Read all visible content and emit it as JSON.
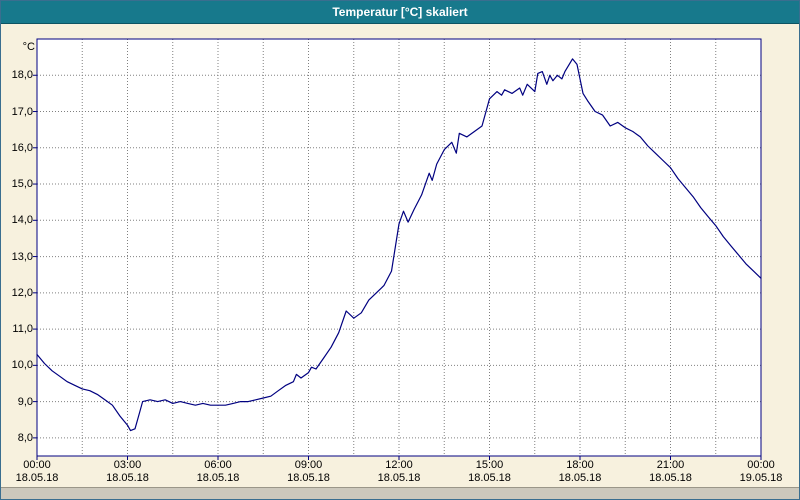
{
  "window": {
    "title": "Temperatur [°C] skaliert"
  },
  "colors": {
    "titlebar": "#17798c",
    "background": "#f7f1de",
    "plot_background": "#ffffff",
    "line": "#000080",
    "grid": "#808080",
    "plot_border": "#000080"
  },
  "chart_data": {
    "type": "line",
    "title": "Temperatur [°C] skaliert",
    "ylabel": "°C",
    "xlabel": "",
    "ylim": [
      7.5,
      19.0
    ],
    "xlim_hours": [
      0,
      24
    ],
    "grid": "dotted",
    "legend": "none",
    "yticks": [
      {
        "value": 8,
        "label": "8,0"
      },
      {
        "value": 9,
        "label": "9,0"
      },
      {
        "value": 10,
        "label": "10,0"
      },
      {
        "value": 11,
        "label": "11,0"
      },
      {
        "value": 12,
        "label": "12,0"
      },
      {
        "value": 13,
        "label": "13,0"
      },
      {
        "value": 14,
        "label": "14,0"
      },
      {
        "value": 15,
        "label": "15,0"
      },
      {
        "value": 16,
        "label": "16,0"
      },
      {
        "value": 17,
        "label": "17,0"
      },
      {
        "value": 18,
        "label": "18,0"
      }
    ],
    "xticks": [
      {
        "hour": 0,
        "time": "00:00",
        "date": "18.05.18"
      },
      {
        "hour": 3,
        "time": "03:00",
        "date": "18.05.18"
      },
      {
        "hour": 6,
        "time": "06:00",
        "date": "18.05.18"
      },
      {
        "hour": 9,
        "time": "09:00",
        "date": "18.05.18"
      },
      {
        "hour": 12,
        "time": "12:00",
        "date": "18.05.18"
      },
      {
        "hour": 15,
        "time": "15:00",
        "date": "18.05.18"
      },
      {
        "hour": 18,
        "time": "18:00",
        "date": "18.05.18"
      },
      {
        "hour": 21,
        "time": "21:00",
        "date": "18.05.18"
      },
      {
        "hour": 24,
        "time": "00:00",
        "date": "19.05.18"
      }
    ],
    "minor_vgrid_step_hours": 1.5,
    "series_name": "Temperatur",
    "points": [
      [
        0.0,
        10.3
      ],
      [
        0.25,
        10.05
      ],
      [
        0.5,
        9.85
      ],
      [
        0.75,
        9.7
      ],
      [
        1.0,
        9.55
      ],
      [
        1.25,
        9.45
      ],
      [
        1.5,
        9.35
      ],
      [
        1.75,
        9.3
      ],
      [
        2.0,
        9.2
      ],
      [
        2.25,
        9.05
      ],
      [
        2.5,
        8.9
      ],
      [
        2.75,
        8.6
      ],
      [
        3.0,
        8.35
      ],
      [
        3.1,
        8.2
      ],
      [
        3.25,
        8.25
      ],
      [
        3.4,
        8.7
      ],
      [
        3.5,
        9.0
      ],
      [
        3.75,
        9.05
      ],
      [
        4.0,
        9.0
      ],
      [
        4.25,
        9.05
      ],
      [
        4.5,
        8.95
      ],
      [
        4.75,
        9.0
      ],
      [
        5.0,
        8.95
      ],
      [
        5.25,
        8.9
      ],
      [
        5.5,
        8.95
      ],
      [
        5.75,
        8.9
      ],
      [
        6.0,
        8.9
      ],
      [
        6.25,
        8.9
      ],
      [
        6.5,
        8.95
      ],
      [
        6.75,
        9.0
      ],
      [
        7.0,
        9.0
      ],
      [
        7.25,
        9.05
      ],
      [
        7.5,
        9.1
      ],
      [
        7.75,
        9.15
      ],
      [
        8.0,
        9.3
      ],
      [
        8.25,
        9.45
      ],
      [
        8.5,
        9.55
      ],
      [
        8.6,
        9.75
      ],
      [
        8.75,
        9.65
      ],
      [
        9.0,
        9.8
      ],
      [
        9.1,
        9.95
      ],
      [
        9.25,
        9.9
      ],
      [
        9.5,
        10.2
      ],
      [
        9.75,
        10.5
      ],
      [
        10.0,
        10.9
      ],
      [
        10.25,
        11.5
      ],
      [
        10.5,
        11.3
      ],
      [
        10.75,
        11.45
      ],
      [
        11.0,
        11.8
      ],
      [
        11.25,
        12.0
      ],
      [
        11.5,
        12.2
      ],
      [
        11.75,
        12.6
      ],
      [
        12.0,
        13.9
      ],
      [
        12.15,
        14.25
      ],
      [
        12.3,
        13.95
      ],
      [
        12.5,
        14.3
      ],
      [
        12.75,
        14.7
      ],
      [
        13.0,
        15.3
      ],
      [
        13.1,
        15.1
      ],
      [
        13.25,
        15.55
      ],
      [
        13.5,
        15.95
      ],
      [
        13.75,
        16.15
      ],
      [
        13.9,
        15.85
      ],
      [
        14.0,
        16.4
      ],
      [
        14.25,
        16.3
      ],
      [
        14.5,
        16.45
      ],
      [
        14.75,
        16.6
      ],
      [
        15.0,
        17.35
      ],
      [
        15.25,
        17.55
      ],
      [
        15.4,
        17.45
      ],
      [
        15.5,
        17.6
      ],
      [
        15.75,
        17.5
      ],
      [
        16.0,
        17.65
      ],
      [
        16.1,
        17.45
      ],
      [
        16.25,
        17.75
      ],
      [
        16.5,
        17.55
      ],
      [
        16.6,
        18.05
      ],
      [
        16.75,
        18.1
      ],
      [
        16.9,
        17.75
      ],
      [
        17.0,
        18.0
      ],
      [
        17.1,
        17.85
      ],
      [
        17.25,
        18.0
      ],
      [
        17.4,
        17.9
      ],
      [
        17.5,
        18.1
      ],
      [
        17.75,
        18.45
      ],
      [
        17.9,
        18.3
      ],
      [
        18.0,
        17.9
      ],
      [
        18.1,
        17.5
      ],
      [
        18.25,
        17.3
      ],
      [
        18.5,
        17.0
      ],
      [
        18.75,
        16.9
      ],
      [
        19.0,
        16.6
      ],
      [
        19.25,
        16.7
      ],
      [
        19.5,
        16.55
      ],
      [
        19.75,
        16.45
      ],
      [
        20.0,
        16.3
      ],
      [
        20.25,
        16.05
      ],
      [
        20.5,
        15.85
      ],
      [
        20.75,
        15.65
      ],
      [
        21.0,
        15.45
      ],
      [
        21.25,
        15.15
      ],
      [
        21.5,
        14.9
      ],
      [
        21.75,
        14.65
      ],
      [
        22.0,
        14.35
      ],
      [
        22.25,
        14.1
      ],
      [
        22.5,
        13.85
      ],
      [
        22.75,
        13.55
      ],
      [
        23.0,
        13.3
      ],
      [
        23.25,
        13.05
      ],
      [
        23.5,
        12.8
      ],
      [
        23.75,
        12.6
      ],
      [
        24.0,
        12.4
      ]
    ]
  }
}
